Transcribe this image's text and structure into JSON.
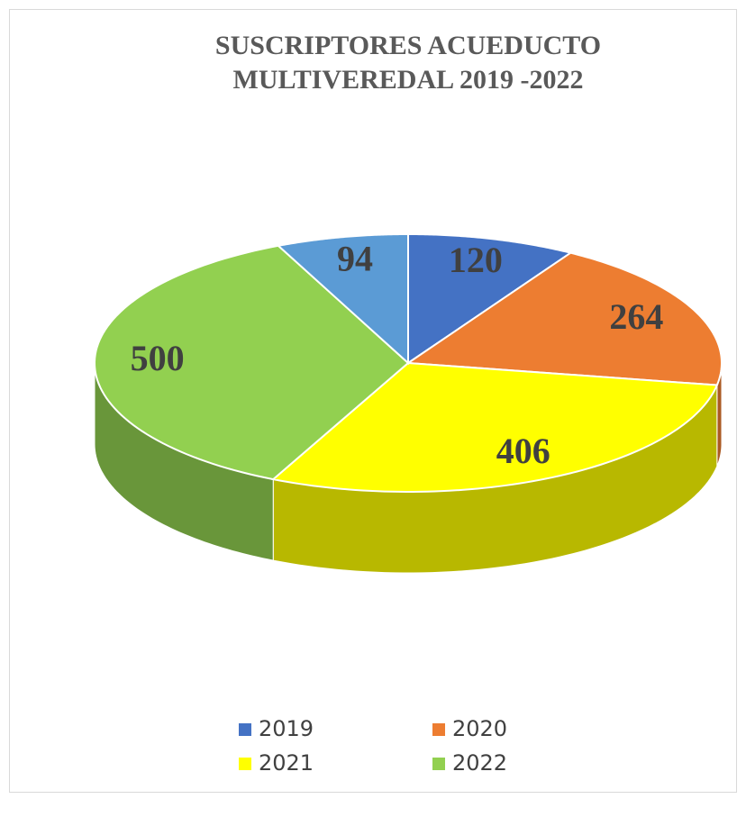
{
  "chart_data": {
    "type": "pie",
    "title": [
      "SUSCRIPTORES ACUEDUCTO",
      "MULTIVEREDAL 2019 -2022"
    ],
    "categories": [
      "2019",
      "2020",
      "2021",
      "2022",
      null
    ],
    "values": [
      120,
      264,
      406,
      500,
      94
    ],
    "colors": [
      "#4472c4",
      "#ed7d31",
      "#ffff00",
      "#92d050",
      "#5b9bd5"
    ],
    "three_d": true,
    "legend": "bottom"
  }
}
